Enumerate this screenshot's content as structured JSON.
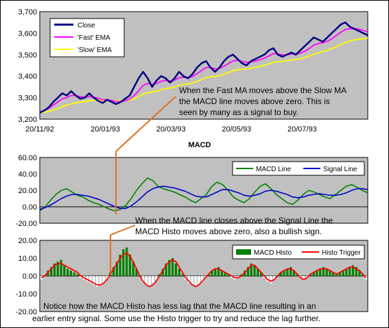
{
  "colors": {
    "plot_bg": "#c0c0c0",
    "close": "#000080",
    "fast": "#ff00ff",
    "slow": "#ffff00",
    "macd": "#008000",
    "signal": "#0000cc",
    "histo": "#008000",
    "histo_neg": "#ffffff",
    "trigger": "#ff0000",
    "arrow": "#e07020"
  },
  "chart_data": [
    {
      "type": "line",
      "title": "",
      "x_tick_labels": [
        "20/11/92",
        "20/01/93",
        "20/03/93",
        "20/05/93",
        "20/07/93"
      ],
      "ylim": [
        3200,
        3700
      ],
      "y_tick_labels": [
        "3,200",
        "3,300",
        "3,400",
        "3,500",
        "3,600",
        "3,700"
      ],
      "legend": [
        "Close",
        "'Fast' EMA",
        "'Slow' EMA"
      ],
      "legend_position": "top-left",
      "series": [
        {
          "name": "Close",
          "values": [
            3230,
            3240,
            3255,
            3280,
            3300,
            3320,
            3310,
            3330,
            3310,
            3295,
            3300,
            3320,
            3300,
            3285,
            3275,
            3290,
            3280,
            3270,
            3280,
            3295,
            3310,
            3350,
            3390,
            3420,
            3390,
            3350,
            3380,
            3400,
            3390,
            3370,
            3390,
            3420,
            3400,
            3390,
            3410,
            3440,
            3460,
            3470,
            3440,
            3420,
            3440,
            3470,
            3490,
            3500,
            3480,
            3460,
            3450,
            3470,
            3480,
            3490,
            3500,
            3520,
            3530,
            3500,
            3490,
            3500,
            3510,
            3500,
            3520,
            3540,
            3560,
            3580,
            3570,
            3560,
            3580,
            3600,
            3620,
            3640,
            3650,
            3630,
            3620,
            3610,
            3600,
            3590
          ]
        },
        {
          "name": "'Fast' EMA",
          "values": [
            3235,
            3240,
            3250,
            3265,
            3280,
            3295,
            3300,
            3310,
            3310,
            3305,
            3302,
            3305,
            3302,
            3297,
            3290,
            3290,
            3287,
            3282,
            3281,
            3285,
            3293,
            3310,
            3332,
            3357,
            3366,
            3361,
            3366,
            3376,
            3380,
            3377,
            3381,
            3393,
            3395,
            3393,
            3398,
            3411,
            3426,
            3440,
            3440,
            3434,
            3436,
            3446,
            3459,
            3471,
            3473,
            3469,
            3464,
            3466,
            3470,
            3476,
            3483,
            3494,
            3505,
            3503,
            3499,
            3499,
            3503,
            3502,
            3507,
            3516,
            3529,
            3544,
            3552,
            3555,
            3562,
            3574,
            3589,
            3604,
            3617,
            3621,
            3621,
            3618,
            3613,
            3606
          ]
        },
        {
          "name": "'Slow' EMA",
          "values": [
            3230,
            3232,
            3236,
            3242,
            3250,
            3258,
            3264,
            3271,
            3276,
            3279,
            3282,
            3286,
            3288,
            3288,
            3287,
            3287,
            3287,
            3285,
            3285,
            3286,
            3289,
            3295,
            3305,
            3317,
            3323,
            3325,
            3330,
            3337,
            3342,
            3345,
            3349,
            3357,
            3361,
            3364,
            3368,
            3376,
            3384,
            3393,
            3397,
            3398,
            3402,
            3409,
            3417,
            3425,
            3430,
            3432,
            3434,
            3437,
            3441,
            3445,
            3451,
            3457,
            3464,
            3467,
            3469,
            3472,
            3475,
            3477,
            3481,
            3487,
            3494,
            3502,
            3509,
            3514,
            3520,
            3528,
            3537,
            3547,
            3556,
            3563,
            3568,
            3572,
            3575,
            3576
          ]
        }
      ]
    },
    {
      "type": "line",
      "title": "MACD",
      "ylim": [
        -20,
        60
      ],
      "y_tick_labels": [
        "-20.00",
        "0.00",
        "20.00",
        "40.00",
        "60.00"
      ],
      "legend": [
        "MACD Line",
        "Signal Line"
      ],
      "legend_position": "top-right",
      "series": [
        {
          "name": "MACD Line",
          "values": [
            -5,
            0,
            8,
            15,
            20,
            22,
            18,
            14,
            12,
            8,
            5,
            3,
            0,
            -3,
            -5,
            -3,
            2,
            10,
            20,
            28,
            35,
            32,
            25,
            22,
            20,
            18,
            15,
            12,
            8,
            5,
            10,
            15,
            25,
            30,
            27,
            20,
            12,
            8,
            5,
            10,
            18,
            25,
            28,
            22,
            15,
            10,
            5,
            3,
            8,
            15,
            20,
            18,
            15,
            12,
            10,
            15,
            20,
            25,
            27,
            24,
            20,
            17
          ]
        },
        {
          "name": "Signal Line",
          "values": [
            -3,
            -1,
            2,
            6,
            10,
            13,
            15,
            15,
            14,
            13,
            11,
            9,
            6,
            3,
            0,
            -2,
            -2,
            1,
            6,
            12,
            18,
            22,
            24,
            25,
            24,
            23,
            21,
            19,
            16,
            13,
            12,
            12,
            15,
            18,
            21,
            21,
            19,
            17,
            14,
            13,
            14,
            16,
            19,
            20,
            19,
            17,
            15,
            12,
            11,
            12,
            14,
            15,
            16,
            15,
            14,
            14,
            15,
            17,
            20,
            22,
            22,
            21
          ]
        }
      ]
    },
    {
      "type": "bar",
      "title": "",
      "ylim": [
        -20,
        20
      ],
      "y_tick_labels": [
        "-20.00",
        "-10.00",
        "0.00",
        "10.00",
        "20.00"
      ],
      "legend": [
        "MACD Histo",
        "Histo Trigger"
      ],
      "legend_position": "top-right",
      "series": [
        {
          "name": "MACD Histo",
          "values": [
            -2,
            0,
            3,
            5,
            7,
            8,
            9,
            6,
            4,
            3,
            2,
            1,
            -1,
            -2,
            -3,
            -4,
            -5,
            -6,
            -5,
            -4,
            -2,
            2,
            5,
            8,
            12,
            15,
            16,
            12,
            8,
            4,
            0,
            -3,
            -5,
            -6,
            -4,
            -2,
            1,
            4,
            7,
            9,
            10,
            7,
            4,
            1,
            -2,
            -4,
            -5,
            -6,
            -5,
            -3,
            -1,
            1,
            3,
            4,
            5,
            3,
            2,
            1,
            -1,
            -2,
            -1,
            1,
            3,
            5,
            7,
            6,
            4,
            2,
            -1,
            -3,
            -4,
            -2,
            0,
            2,
            3,
            4,
            5,
            3,
            1,
            -1,
            -2,
            -1,
            1,
            2,
            3,
            4,
            5,
            4,
            3,
            2,
            1,
            2,
            3,
            4,
            5,
            6,
            5,
            3,
            1,
            -2
          ]
        },
        {
          "name": "Histo Trigger",
          "values": [
            -1,
            0,
            2,
            4,
            6,
            7,
            7,
            6,
            5,
            4,
            3,
            2,
            0,
            -1,
            -2,
            -3,
            -4,
            -5,
            -5,
            -4,
            -2,
            1,
            4,
            7,
            10,
            12,
            13,
            11,
            8,
            4,
            0,
            -3,
            -5,
            -6,
            -5,
            -3,
            0,
            3,
            6,
            8,
            9,
            8,
            5,
            2,
            -1,
            -3,
            -5,
            -6,
            -5,
            -3,
            -1,
            1,
            3,
            4,
            4,
            3,
            2,
            1,
            0,
            -1,
            -1,
            0,
            2,
            4,
            6,
            6,
            4,
            2,
            0,
            -2,
            -3,
            -2,
            0,
            2,
            3,
            4,
            4,
            3,
            1,
            -1,
            -2,
            -1,
            1,
            2,
            3,
            4,
            4,
            4,
            3,
            2,
            1,
            2,
            3,
            4,
            5,
            5,
            4,
            3,
            1,
            -1
          ]
        }
      ]
    }
  ],
  "annotations": {
    "fast_above_slow": [
      "When the Fast MA moves above the Slow MA",
      "the MACD line moves above zero.  This is",
      "seen by many as a signal to buy."
    ],
    "macd_above_signal": [
      "When the MACD line closes above the Signal Line the",
      "MACD Histo moves above zero, also a bullish sign."
    ],
    "histo_lag": [
      "Notice how the MACD Histo has less lag that the MACD line resulting in an",
      "earlier entry signal.  Some use the Histo trigger to try and reduce the lag further."
    ]
  }
}
